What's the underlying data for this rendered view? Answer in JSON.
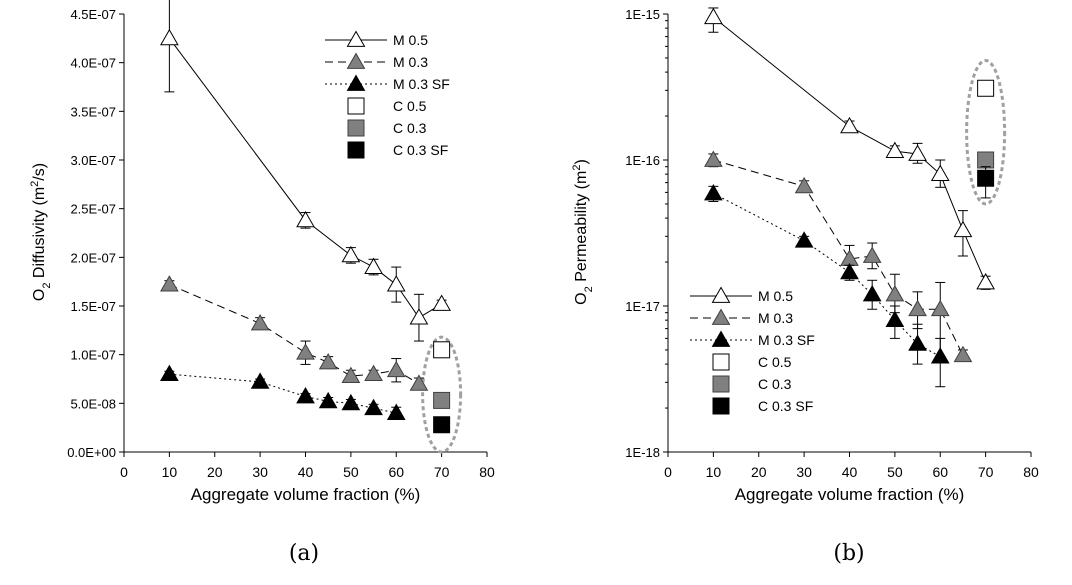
{
  "chart_data": [
    {
      "type": "scatter",
      "caption": "(a)",
      "xlabel": "Aggregate volume fraction (%)",
      "ylabel_pre": "O",
      "ylabel_sub": "2",
      "ylabel_mid": " Diffusivity (m",
      "ylabel_sup": "2",
      "ylabel_post": "/s)",
      "xlim": [
        0,
        80
      ],
      "ylim": [
        0,
        4.5e-07
      ],
      "yscale": "linear",
      "x_ticks": [
        "0",
        "10",
        "20",
        "30",
        "40",
        "50",
        "60",
        "70",
        "80"
      ],
      "x_tick_values": [
        0,
        10,
        20,
        30,
        40,
        50,
        60,
        70,
        80
      ],
      "y_ticks": [
        "0.0E+00",
        "5.0E-08",
        "1.0E-07",
        "1.5E-07",
        "2.0E-07",
        "2.5E-07",
        "3.0E-07",
        "3.5E-07",
        "4.0E-07",
        "4.5E-07"
      ],
      "y_tick_values": [
        0,
        5e-08,
        1e-07,
        1.5e-07,
        2e-07,
        2.5e-07,
        3e-07,
        3.5e-07,
        4e-07,
        4.5e-07
      ],
      "legend_position": "top-right",
      "series": [
        {
          "name": "M 0.5",
          "marker": "triangle",
          "fill": "#ffffff",
          "line": "solid",
          "x": [
            10,
            40,
            50,
            55,
            60,
            65,
            70
          ],
          "y": [
            4.25e-07,
            2.38e-07,
            2.02e-07,
            1.9e-07,
            1.72e-07,
            1.38e-07,
            1.52e-07
          ],
          "err": [
            5.5e-08,
            8e-09,
            8e-09,
            8e-09,
            1.8e-08,
            2.4e-08,
            4e-09
          ]
        },
        {
          "name": "M 0.3",
          "marker": "triangle",
          "fill": "#808080",
          "line": "dashed",
          "x": [
            10,
            30,
            40,
            45,
            50,
            55,
            60,
            65
          ],
          "y": [
            1.72e-07,
            1.32e-07,
            1.02e-07,
            9.2e-08,
            7.8e-08,
            8e-08,
            8.4e-08,
            7e-08
          ],
          "err": [
            4e-09,
            6e-09,
            1.2e-08,
            6e-09,
            6e-09,
            4e-09,
            1.2e-08,
            6e-09
          ]
        },
        {
          "name": "M 0.3 SF",
          "marker": "triangle",
          "fill": "#000000",
          "line": "dotted",
          "x": [
            10,
            30,
            40,
            45,
            50,
            55,
            60
          ],
          "y": [
            8e-08,
            7.2e-08,
            5.7e-08,
            5.2e-08,
            5e-08,
            4.5e-08,
            4e-08
          ],
          "err": [
            3e-09,
            3e-09,
            3e-09,
            4e-09,
            4e-09,
            4e-09,
            6e-09
          ]
        },
        {
          "name": "C 0.5",
          "marker": "square",
          "fill": "#ffffff",
          "line": "none",
          "x": [
            70
          ],
          "y": [
            1.05e-07
          ],
          "err": [
            0
          ]
        },
        {
          "name": "C 0.3",
          "marker": "square",
          "fill": "#808080",
          "line": "none",
          "x": [
            70
          ],
          "y": [
            5.3e-08
          ],
          "err": [
            0
          ]
        },
        {
          "name": "C 0.3 SF",
          "marker": "square",
          "fill": "#000000",
          "line": "none",
          "x": [
            70
          ],
          "y": [
            2.8e-08
          ],
          "err": [
            0
          ]
        }
      ],
      "annotation": {
        "shape": "ellipse",
        "color": "#a0a0a0",
        "x": 70,
        "y_range": [
          0,
          1.18e-07
        ]
      }
    },
    {
      "type": "scatter",
      "caption": "(b)",
      "xlabel": "Aggregate volume fraction (%)",
      "ylabel_pre": "O",
      "ylabel_sub": "2",
      "ylabel_mid": " Permeability (m",
      "ylabel_sup": "2",
      "ylabel_post": ")",
      "xlim": [
        0,
        80
      ],
      "ylim": [
        1e-18,
        1e-15
      ],
      "yscale": "log",
      "x_ticks": [
        "0",
        "10",
        "20",
        "30",
        "40",
        "50",
        "60",
        "70",
        "80"
      ],
      "x_tick_values": [
        0,
        10,
        20,
        30,
        40,
        50,
        60,
        70,
        80
      ],
      "y_ticks": [
        "1E-18",
        "1E-17",
        "1E-16",
        "1E-15"
      ],
      "y_tick_values": [
        1e-18,
        1e-17,
        1e-16,
        1e-15
      ],
      "legend_position": "bottom-center",
      "series": [
        {
          "name": "M 0.5",
          "marker": "triangle",
          "fill": "#ffffff",
          "line": "solid",
          "x": [
            10,
            40,
            50,
            55,
            60,
            65,
            70
          ],
          "y": [
            9.5e-16,
            1.7e-16,
            1.15e-16,
            1.1e-16,
            8e-17,
            3.3e-17,
            1.45e-17
          ],
          "err_lo": [
            7.5e-16,
            1.55e-16,
            1.05e-16,
            9.5e-17,
            6.5e-17,
            2.2e-17,
            1.3e-17
          ],
          "err_hi": [
            1.1e-15,
            1.85e-16,
            1.25e-16,
            1.3e-16,
            1e-16,
            4.5e-17,
            1.6e-17
          ]
        },
        {
          "name": "M 0.3",
          "marker": "triangle",
          "fill": "#808080",
          "line": "dashed",
          "x": [
            10,
            30,
            40,
            45,
            50,
            55,
            60,
            65
          ],
          "y": [
            1e-16,
            6.6e-17,
            2.1e-17,
            2.2e-17,
            1.2e-17,
            9.5e-18,
            9.5e-18,
            4.6e-18
          ],
          "err_lo": [
            9e-17,
            6e-17,
            1.7e-17,
            1.8e-17,
            9e-18,
            7e-18,
            4.5e-18,
            4.2e-18
          ],
          "err_hi": [
            1.1e-16,
            7.2e-17,
            2.6e-17,
            2.7e-17,
            1.65e-17,
            1.25e-17,
            1.45e-17,
            5e-18
          ]
        },
        {
          "name": "M 0.3 SF",
          "marker": "triangle",
          "fill": "#000000",
          "line": "dotted",
          "x": [
            10,
            30,
            40,
            45,
            50,
            55,
            60
          ],
          "y": [
            5.9e-17,
            2.8e-17,
            1.7e-17,
            1.2e-17,
            8e-18,
            5.5e-18,
            4.5e-18
          ],
          "err_lo": [
            5.2e-17,
            2.6e-17,
            1.5e-17,
            9.5e-18,
            6e-18,
            4e-18,
            2.8e-18
          ],
          "err_hi": [
            6.6e-17,
            3e-17,
            1.9e-17,
            1.5e-17,
            1e-17,
            7.5e-18,
            6e-18
          ]
        },
        {
          "name": "C 0.5",
          "marker": "square",
          "fill": "#ffffff",
          "line": "none",
          "x": [
            70
          ],
          "y": [
            3.1e-16
          ],
          "err_lo": [
            3.1e-16
          ],
          "err_hi": [
            3.1e-16
          ]
        },
        {
          "name": "C 0.3",
          "marker": "square",
          "fill": "#808080",
          "line": "none",
          "x": [
            70
          ],
          "y": [
            1e-16
          ],
          "err_lo": [
            1e-16
          ],
          "err_hi": [
            1e-16
          ]
        },
        {
          "name": "C 0.3 SF",
          "marker": "square",
          "fill": "#000000",
          "line": "none",
          "x": [
            70
          ],
          "y": [
            7.5e-17
          ],
          "err_lo": [
            5.5e-17
          ],
          "err_hi": [
            9e-17
          ]
        }
      ],
      "annotation": {
        "shape": "ellipse",
        "color": "#a0a0a0",
        "x": 70,
        "y_range": [
          5e-17,
          4.8e-16
        ]
      }
    }
  ]
}
